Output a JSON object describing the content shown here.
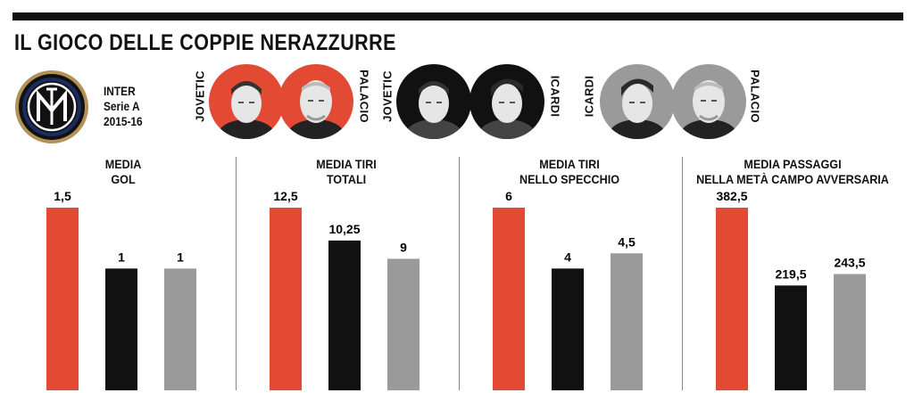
{
  "title": "IL GIOCO DELLE COPPIE NERAZZURRE",
  "team": {
    "name": "INTER",
    "competition": "Serie A",
    "season": "2015-16"
  },
  "colors": {
    "orange": "#e24a33",
    "black": "#111111",
    "grey": "#9a9a9a",
    "inter_blue": "#1b2c63",
    "inter_gold": "#b39157"
  },
  "pairs": [
    {
      "left": "JOVETIC",
      "right": "PALACIO",
      "bg": "#e24a33"
    },
    {
      "left": "JOVETIC",
      "right": "ICARDI",
      "bg": "#111111"
    },
    {
      "left": "ICARDI",
      "right": "PALACIO",
      "bg": "#9a9a9a"
    }
  ],
  "chart_data": [
    {
      "type": "bar",
      "title": [
        "MEDIA",
        "GOL"
      ],
      "categories": [
        "JOVETIC-PALACIO",
        "JOVETIC-ICARDI",
        "ICARDI-PALACIO"
      ],
      "values": [
        1.5,
        1,
        1
      ],
      "labels": [
        "1,5",
        "1",
        "1"
      ]
    },
    {
      "type": "bar",
      "title": [
        "MEDIA TIRI",
        "TOTALI"
      ],
      "categories": [
        "JOVETIC-PALACIO",
        "JOVETIC-ICARDI",
        "ICARDI-PALACIO"
      ],
      "values": [
        12.5,
        10.25,
        9
      ],
      "labels": [
        "12,5",
        "10,25",
        "9"
      ]
    },
    {
      "type": "bar",
      "title": [
        "MEDIA TIRI",
        "NELLO SPECCHIO"
      ],
      "categories": [
        "JOVETIC-PALACIO",
        "JOVETIC-ICARDI",
        "ICARDI-PALACIO"
      ],
      "values": [
        6,
        4,
        4.5
      ],
      "labels": [
        "6",
        "4",
        "4,5"
      ]
    },
    {
      "type": "bar",
      "title": [
        "MEDIA PASSAGGI",
        "NELLA METÀ CAMPO AVVERSARIA"
      ],
      "categories": [
        "JOVETIC-PALACIO",
        "JOVETIC-ICARDI",
        "ICARDI-PALACIO"
      ],
      "values": [
        382.5,
        219.5,
        243.5
      ],
      "labels": [
        "382,5",
        "219,5",
        "243,5"
      ]
    }
  ]
}
